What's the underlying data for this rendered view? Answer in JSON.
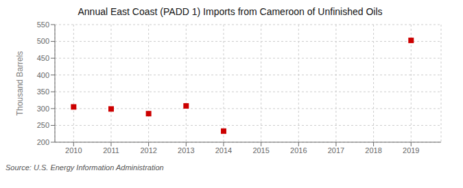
{
  "chart_data": {
    "type": "scatter",
    "title": "Annual East Coast (PADD 1) Imports from Cameroon of Unfinished Oils",
    "ylabel": "Thousand Barrels",
    "annotations": [
      "Source: U.S. Energy Information Administration"
    ],
    "x": [
      2010,
      2011,
      2012,
      2013,
      2014,
      2019
    ],
    "values": [
      305,
      299,
      285,
      308,
      233,
      503
    ],
    "color": "#cc0000",
    "marker": "square",
    "xlim": [
      2009.5,
      2019.8
    ],
    "xticks": [
      2010,
      2011,
      2012,
      2013,
      2014,
      2015,
      2016,
      2017,
      2018,
      2019
    ],
    "ylim": [
      200,
      550
    ],
    "yticks": [
      200,
      250,
      300,
      350,
      400,
      450,
      500,
      550
    ],
    "grid": true
  }
}
